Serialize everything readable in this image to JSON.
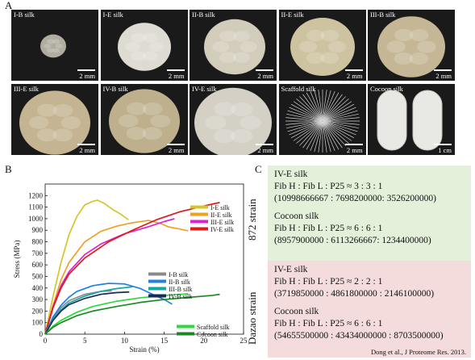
{
  "panels": {
    "a": "A",
    "b": "B",
    "c": "C"
  },
  "tiles": [
    {
      "label": "I-B silk",
      "scale": "2 mm"
    },
    {
      "label": "I-E silk",
      "scale": "2 mm"
    },
    {
      "label": "II-B silk",
      "scale": "2 mm"
    },
    {
      "label": "II-E silk",
      "scale": "2 mm"
    },
    {
      "label": "III-B silk",
      "scale": "2 mm"
    },
    {
      "label": "III-E silk",
      "scale": "2 mm"
    },
    {
      "label": "IV-B silk",
      "scale": "2 mm"
    },
    {
      "label": "IV-E silk",
      "scale": "2 mm"
    },
    {
      "label": "Scaffold silk",
      "scale": "2 mm"
    },
    {
      "label": "Cocoon silk",
      "scale": "1 cm"
    }
  ],
  "chart_data": {
    "type": "line",
    "xlabel": "Strain (%)",
    "ylabel": "Stress (MPa)",
    "xlim": [
      0,
      25
    ],
    "ylim": [
      0,
      1300
    ],
    "xticks": [
      0,
      5,
      10,
      15,
      20,
      25
    ],
    "yticks": [
      0,
      100,
      200,
      300,
      400,
      500,
      600,
      700,
      800,
      900,
      1000,
      1100,
      1200
    ],
    "grid": false,
    "series": [
      {
        "name": "I-E silk",
        "color": "#d4c62a",
        "x": [
          0,
          1,
          2,
          3,
          4,
          5,
          6,
          6.6,
          7.5,
          8.5,
          9.5,
          10.5
        ],
        "y": [
          0,
          330,
          620,
          860,
          1020,
          1120,
          1150,
          1160,
          1130,
          1080,
          1040,
          990
        ]
      },
      {
        "name": "II-E silk",
        "color": "#f0a020",
        "x": [
          0,
          1,
          2,
          3,
          5,
          7,
          9,
          11,
          13,
          14.5,
          15.5,
          17,
          18
        ],
        "y": [
          0,
          250,
          470,
          620,
          800,
          890,
          935,
          965,
          985,
          960,
          930,
          910,
          895
        ]
      },
      {
        "name": "III-E silk",
        "color": "#e020d0",
        "x": [
          0,
          1,
          2,
          3,
          5,
          7,
          10,
          13,
          15,
          16.3
        ],
        "y": [
          0,
          240,
          420,
          540,
          690,
          780,
          870,
          930,
          975,
          1000
        ]
      },
      {
        "name": "IV-E silk",
        "color": "#e01818",
        "x": [
          0,
          1,
          2,
          3,
          5,
          8,
          11,
          14,
          17,
          20,
          22
        ],
        "y": [
          0,
          230,
          400,
          520,
          660,
          800,
          900,
          990,
          1060,
          1110,
          1140
        ]
      },
      {
        "name": "I-B silk",
        "color": "#8a8a8a",
        "x": [
          0,
          1,
          2,
          3,
          5,
          7,
          8.4
        ],
        "y": [
          0,
          140,
          230,
          290,
          345,
          370,
          375
        ]
      },
      {
        "name": "II-B silk",
        "color": "#2080e0",
        "x": [
          0,
          1,
          2,
          3,
          4,
          6,
          8,
          10,
          12,
          14,
          15,
          16
        ],
        "y": [
          0,
          150,
          250,
          320,
          370,
          420,
          440,
          435,
          395,
          330,
          300,
          260
        ]
      },
      {
        "name": "III-B silk",
        "color": "#10a8a0",
        "x": [
          0,
          1,
          2,
          3,
          5,
          7,
          9,
          11
        ],
        "y": [
          0,
          130,
          210,
          270,
          330,
          370,
          395,
          410
        ]
      },
      {
        "name": "IV-B silk",
        "color": "#182a55",
        "x": [
          0,
          1,
          2,
          3,
          5,
          7,
          9,
          10.6
        ],
        "y": [
          0,
          120,
          200,
          255,
          310,
          345,
          360,
          365
        ]
      },
      {
        "name": "Scaffold silk",
        "color": "#30d840",
        "x": [
          0,
          1,
          2,
          4,
          6,
          9,
          12,
          15,
          18
        ],
        "y": [
          0,
          70,
          120,
          190,
          240,
          285,
          315,
          335,
          350
        ]
      },
      {
        "name": "Cocoon silk",
        "color": "#1a8a20",
        "x": [
          0,
          1,
          2,
          4,
          6,
          9,
          12,
          15,
          18,
          21,
          22
        ],
        "y": [
          0,
          60,
          100,
          160,
          200,
          240,
          275,
          300,
          318,
          335,
          345
        ]
      }
    ],
    "legend_groups": [
      [
        "I-E silk",
        "II-E silk",
        "III-E silk",
        "IV-E silk"
      ],
      [
        "I-B silk",
        "II-B silk",
        "III-B silk",
        "IV-B silk"
      ],
      [
        "Scaffold silk",
        "Cocoon silk"
      ]
    ]
  },
  "panel_c": {
    "groups": [
      {
        "strain": "872 strain",
        "bg": "#e3f0da",
        "entries": [
          {
            "title": "IV-E silk",
            "ratio": "Fib H : Fib L : P25 ≈ 3 : 3 : 1",
            "values": "(10998666667 : 7698200000: 3526200000)"
          },
          {
            "title": "Cocoon silk",
            "ratio": "Fib H : Fib L : P25 ≈ 6 : 6 : 1",
            "values": "(8957900000 : 6113266667: 1234400000)"
          }
        ]
      },
      {
        "strain": "Dazao strain",
        "bg": "#f4dcdc",
        "entries": [
          {
            "title": "IV-E silk",
            "ratio": "Fib H : Fib L : P25 ≈ 2 : 2 : 1",
            "values": "(3719850000 : 4861800000 : 2146100000)"
          },
          {
            "title": "Cocoon silk",
            "ratio": "Fib H : Fib L : P25 ≈ 6 : 6 : 1",
            "values": "(54655500000 : 43434000000 : 8703500000)"
          }
        ]
      }
    ],
    "reference": "Dong et al., J Proteome Res. 2013."
  }
}
